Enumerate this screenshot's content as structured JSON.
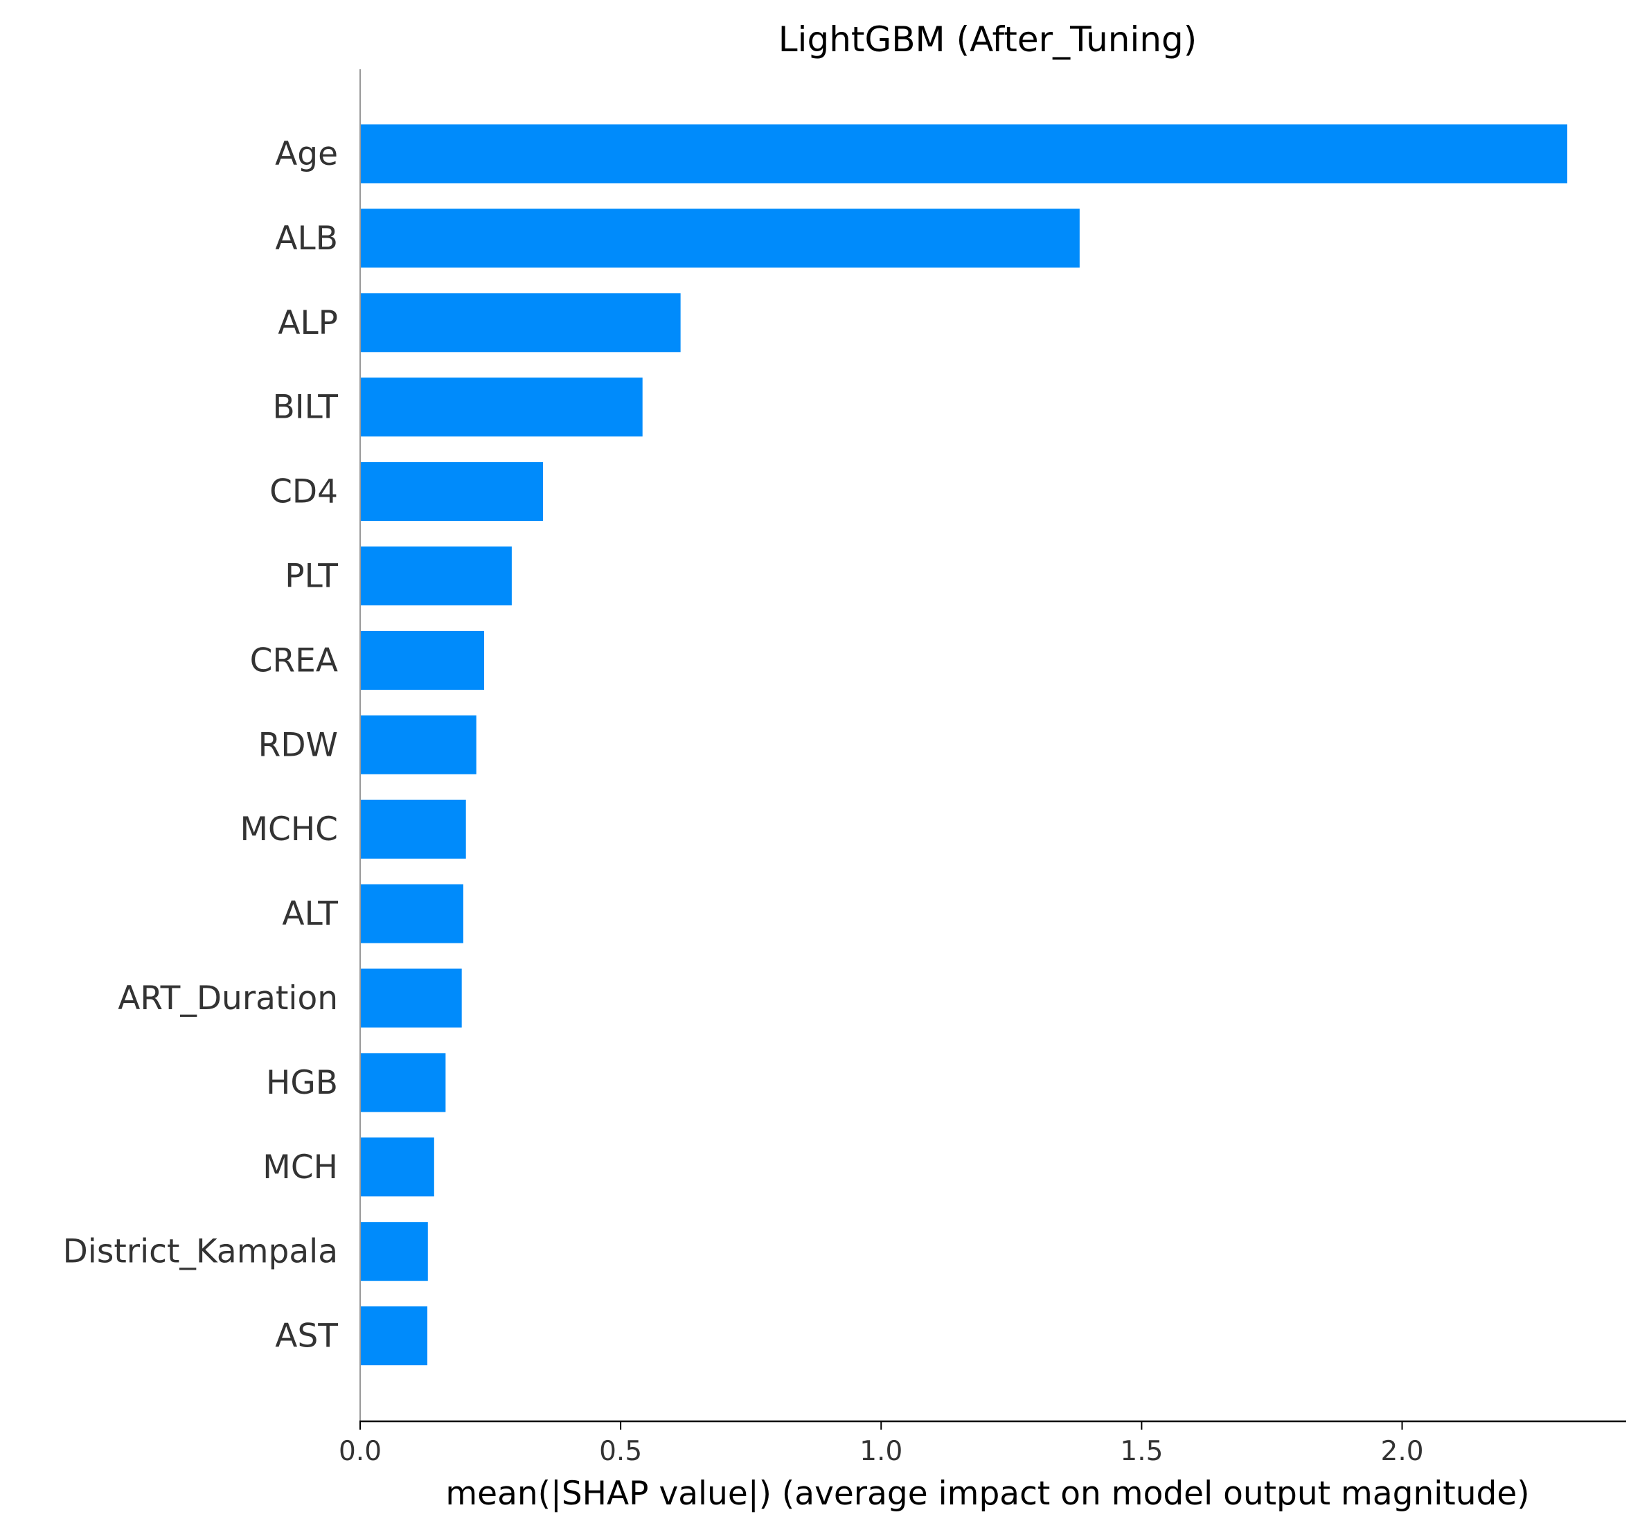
{
  "chart_data": {
    "type": "bar",
    "orientation": "horizontal",
    "title": "LightGBM (After_Tuning)",
    "xlabel": "mean(|SHAP value|) (average impact on model output magnitude)",
    "ylabel": "",
    "categories": [
      "Age",
      "ALB",
      "ALP",
      "BILT",
      "CD4",
      "PLT",
      "CREA",
      "RDW",
      "MCHC",
      "ALT",
      "ART_Duration",
      "HGB",
      "MCH",
      "District_Kampala",
      "AST"
    ],
    "values": [
      2.317,
      1.381,
      0.615,
      0.542,
      0.351,
      0.291,
      0.238,
      0.223,
      0.203,
      0.198,
      0.195,
      0.164,
      0.142,
      0.13,
      0.129
    ],
    "xlim": [
      0,
      2.43
    ],
    "xticks": [
      "0.0",
      "0.5",
      "1.0",
      "1.5",
      "2.0"
    ],
    "xtick_values": [
      0,
      0.5,
      1.0,
      1.5,
      2.0
    ],
    "grid": false,
    "color": "#008bfb"
  }
}
